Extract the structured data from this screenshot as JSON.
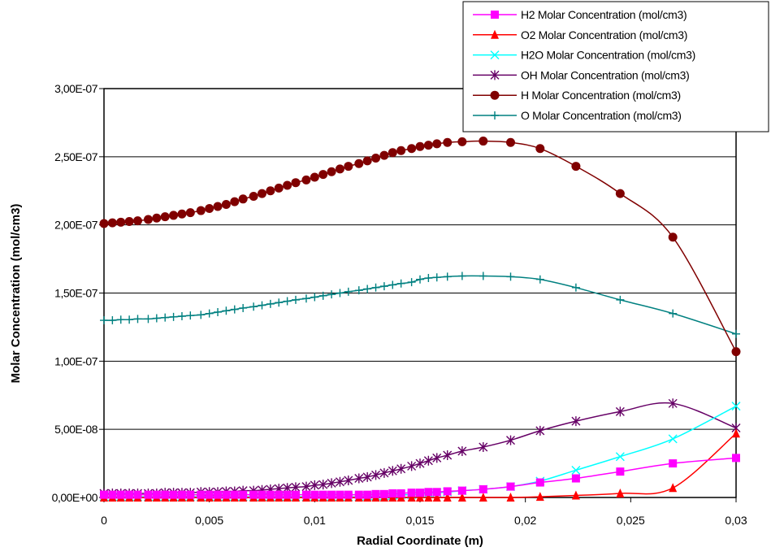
{
  "chart_data": {
    "type": "line",
    "xlabel": "Radial Coordinate (m)",
    "ylabel": "Molar Concentration (mol/cm3)",
    "xlim": [
      0,
      0.03
    ],
    "ylim": [
      0,
      3e-07
    ],
    "x_ticks": [
      "0",
      "0,005",
      "0,01",
      "0,015",
      "0,02",
      "0,025",
      "0,03"
    ],
    "x_tick_values": [
      0,
      0.005,
      0.01,
      0.015,
      0.02,
      0.025,
      0.03
    ],
    "y_ticks": [
      "0,00E+00",
      "5,00E-08",
      "1,00E-07",
      "1,50E-07",
      "2,00E-07",
      "2,50E-07",
      "3,00E-07"
    ],
    "y_tick_values": [
      0,
      5e-08,
      1e-07,
      1.5e-07,
      2e-07,
      2.5e-07,
      3e-07
    ],
    "grid": "horizontal",
    "legend_position": "top-right",
    "x": [
      0,
      0.0004,
      0.0008,
      0.0012,
      0.0016,
      0.0021,
      0.0025,
      0.0029,
      0.0033,
      0.0037,
      0.0041,
      0.0046,
      0.005,
      0.0054,
      0.0058,
      0.0062,
      0.0066,
      0.0071,
      0.0075,
      0.0079,
      0.0083,
      0.0087,
      0.0091,
      0.0096,
      0.01,
      0.0104,
      0.0108,
      0.0112,
      0.0116,
      0.0121,
      0.0125,
      0.0129,
      0.0133,
      0.0137,
      0.0141,
      0.0146,
      0.015,
      0.0154,
      0.0158,
      0.0163,
      0.017,
      0.018,
      0.0193,
      0.0207,
      0.0224,
      0.0245,
      0.027,
      0.03
    ],
    "series": [
      {
        "name": "H2 Molar Concentration (mol/cm3)",
        "color": "#ff00ff",
        "marker": "square",
        "values": [
          2e-09,
          2e-09,
          2e-09,
          2e-09,
          2e-09,
          2e-09,
          2e-09,
          2e-09,
          2e-09,
          2e-09,
          2e-09,
          2e-09,
          2e-09,
          2e-09,
          2e-09,
          2e-09,
          2e-09,
          2e-09,
          2e-09,
          2e-09,
          2e-09,
          2e-09,
          2e-09,
          2e-09,
          2e-09,
          2e-09,
          2e-09,
          2e-09,
          2e-09,
          2e-09,
          2e-09,
          2.5e-09,
          2.5e-09,
          3e-09,
          3e-09,
          3.5e-09,
          3.5e-09,
          4e-09,
          4e-09,
          4.5e-09,
          5e-09,
          6e-09,
          8e-09,
          1.1e-08,
          1.4e-08,
          1.9e-08,
          2.5e-08,
          2.9e-08
        ]
      },
      {
        "name": "O2 Molar Concentration (mol/cm3)",
        "color": "#ff0000",
        "marker": "triangle",
        "values": [
          0,
          0,
          0,
          0,
          0,
          0,
          0,
          0,
          0,
          0,
          0,
          0,
          0,
          0,
          0,
          0,
          0,
          0,
          0,
          0,
          0,
          0,
          0,
          0,
          0,
          0,
          0,
          0,
          0,
          0,
          0,
          0,
          0,
          0,
          0,
          0,
          0,
          0,
          0,
          0,
          0,
          0,
          0,
          5e-10,
          1.5e-09,
          3e-09,
          7e-09,
          4.7e-08
        ]
      },
      {
        "name": "H2O Molar Concentration (mol/cm3)",
        "color": "#00ffff",
        "marker": "x",
        "values": [
          5e-10,
          5e-10,
          5e-10,
          5e-10,
          5e-10,
          5e-10,
          5e-10,
          5e-10,
          5e-10,
          5e-10,
          5e-10,
          5e-10,
          5e-10,
          5e-10,
          5e-10,
          5e-10,
          5e-10,
          5e-10,
          5e-10,
          5e-10,
          5e-10,
          5e-10,
          5e-10,
          5e-10,
          5e-10,
          5e-10,
          5e-10,
          5e-10,
          5e-10,
          5e-10,
          1e-09,
          1e-09,
          1e-09,
          1.5e-09,
          2e-09,
          2e-09,
          2.5e-09,
          3e-09,
          3.5e-09,
          4e-09,
          5e-09,
          6e-09,
          8e-09,
          1.2e-08,
          2e-08,
          3e-08,
          4.3e-08,
          6.7e-08
        ]
      },
      {
        "name": "OH Molar Concentration (mol/cm3)",
        "color": "#660066",
        "marker": "asterisk",
        "values": [
          3e-09,
          3e-09,
          3e-09,
          3e-09,
          3e-09,
          3e-09,
          3e-09,
          3.5e-09,
          3.5e-09,
          3.5e-09,
          3.5e-09,
          4e-09,
          4e-09,
          4e-09,
          4.5e-09,
          4.5e-09,
          5e-09,
          5e-09,
          5.5e-09,
          6e-09,
          6.5e-09,
          7e-09,
          7.5e-09,
          8e-09,
          9e-09,
          9.5e-09,
          1.05e-08,
          1.15e-08,
          1.25e-08,
          1.4e-08,
          1.5e-08,
          1.65e-08,
          1.8e-08,
          1.95e-08,
          2.1e-08,
          2.3e-08,
          2.5e-08,
          2.7e-08,
          2.9e-08,
          3.1e-08,
          3.4e-08,
          3.7e-08,
          4.2e-08,
          4.9e-08,
          5.6e-08,
          6.3e-08,
          6.9e-08,
          5.1e-08
        ]
      },
      {
        "name": "H Molar Concentration (mol/cm3)",
        "color": "#800000",
        "marker": "circle",
        "values": [
          2.01e-07,
          2.015e-07,
          2.02e-07,
          2.025e-07,
          2.03e-07,
          2.04e-07,
          2.05e-07,
          2.06e-07,
          2.07e-07,
          2.08e-07,
          2.09e-07,
          2.105e-07,
          2.12e-07,
          2.135e-07,
          2.15e-07,
          2.17e-07,
          2.19e-07,
          2.21e-07,
          2.23e-07,
          2.25e-07,
          2.27e-07,
          2.29e-07,
          2.31e-07,
          2.33e-07,
          2.35e-07,
          2.37e-07,
          2.39e-07,
          2.41e-07,
          2.43e-07,
          2.45e-07,
          2.47e-07,
          2.49e-07,
          2.51e-07,
          2.53e-07,
          2.545e-07,
          2.56e-07,
          2.575e-07,
          2.585e-07,
          2.595e-07,
          2.605e-07,
          2.61e-07,
          2.615e-07,
          2.605e-07,
          2.56e-07,
          2.43e-07,
          2.23e-07,
          1.91e-07,
          1.07e-07
        ]
      },
      {
        "name": "O Molar Concentration (mol/cm3)",
        "color": "#008080",
        "marker": "plus",
        "values": [
          1.3e-07,
          1.3e-07,
          1.305e-07,
          1.305e-07,
          1.31e-07,
          1.31e-07,
          1.315e-07,
          1.32e-07,
          1.325e-07,
          1.33e-07,
          1.335e-07,
          1.34e-07,
          1.35e-07,
          1.36e-07,
          1.37e-07,
          1.38e-07,
          1.39e-07,
          1.4e-07,
          1.41e-07,
          1.42e-07,
          1.43e-07,
          1.44e-07,
          1.45e-07,
          1.46e-07,
          1.47e-07,
          1.48e-07,
          1.49e-07,
          1.5e-07,
          1.51e-07,
          1.52e-07,
          1.53e-07,
          1.54e-07,
          1.55e-07,
          1.56e-07,
          1.57e-07,
          1.58e-07,
          1.6e-07,
          1.61e-07,
          1.615e-07,
          1.62e-07,
          1.625e-07,
          1.625e-07,
          1.62e-07,
          1.6e-07,
          1.54e-07,
          1.45e-07,
          1.35e-07,
          1.2e-07
        ]
      }
    ]
  }
}
